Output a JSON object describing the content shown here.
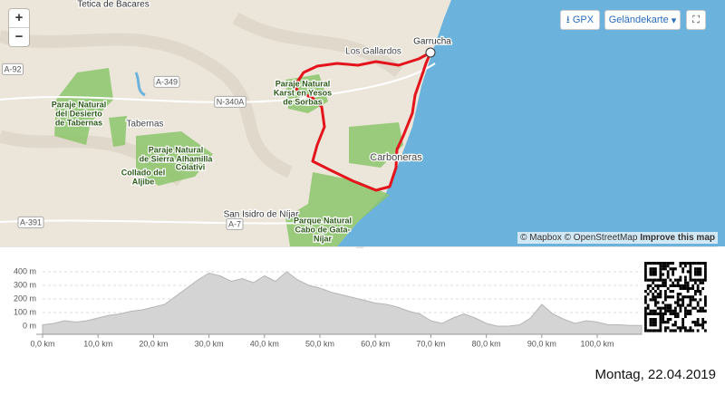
{
  "map": {
    "labels": [
      {
        "lines": [
          "Tetica de Bacares"
        ]
      },
      {
        "lines": [
          "Los Gallardos"
        ]
      },
      {
        "lines": [
          "Garrucha"
        ]
      },
      {
        "lines": [
          "A-92"
        ]
      },
      {
        "lines": [
          "A-349"
        ]
      },
      {
        "lines": [
          "N-340A"
        ]
      },
      {
        "lines": [
          "Tabernas"
        ]
      },
      {
        "lines": [
          "Paraje Natural",
          "del Desierto",
          "de Tabernas"
        ]
      },
      {
        "lines": [
          "Paraje Natural",
          "Karst en Yesos",
          "de Sorbas"
        ]
      },
      {
        "lines": [
          "Paraje Natural",
          "de Sierra Alhamilla"
        ]
      },
      {
        "lines": [
          "Colativi"
        ]
      },
      {
        "lines": [
          "Collado del",
          "Aljibe"
        ]
      },
      {
        "lines": [
          "Carboneras"
        ]
      },
      {
        "lines": [
          "San Isidro de Níjar"
        ]
      },
      {
        "lines": [
          "A-7"
        ]
      },
      {
        "lines": [
          "A-391"
        ]
      },
      {
        "lines": [
          "Parque Natural",
          "Cabo de Gata-",
          "Níjar"
        ]
      }
    ],
    "zoom_in": "+",
    "zoom_out": "−",
    "gpx_button": "GPX",
    "layer_button": "Geländekarte",
    "attribution": [
      "© Mapbox",
      "© OpenStreetMap",
      "Improve this map"
    ]
  },
  "elevation": {
    "x": [
      0,
      2,
      4,
      6,
      8,
      10,
      12,
      14,
      16,
      18,
      20,
      22,
      24,
      26,
      28,
      30,
      32,
      34,
      36,
      38,
      40,
      42,
      44,
      46,
      48,
      50,
      52,
      54,
      56,
      58,
      60,
      62,
      64,
      66,
      68,
      70,
      72,
      74,
      76,
      78,
      80,
      82,
      84,
      86,
      88,
      90,
      92,
      94,
      96,
      98,
      100,
      102,
      104,
      106,
      108
    ],
    "values": [
      10,
      20,
      40,
      30,
      40,
      60,
      80,
      90,
      110,
      120,
      140,
      160,
      220,
      280,
      340,
      390,
      370,
      330,
      350,
      320,
      370,
      330,
      400,
      340,
      300,
      280,
      250,
      230,
      210,
      190,
      170,
      160,
      140,
      110,
      90,
      40,
      20,
      60,
      90,
      60,
      20,
      0,
      0,
      10,
      60,
      160,
      90,
      50,
      20,
      40,
      30,
      10,
      10,
      5,
      5
    ],
    "xlim": [
      0,
      108
    ],
    "ylim": [
      -60,
      450
    ],
    "xticks": [
      {
        "value": 0,
        "label": "0,0 km"
      },
      {
        "value": 10,
        "label": "10,0 km"
      },
      {
        "value": 20,
        "label": "20,0 km"
      },
      {
        "value": 30,
        "label": "30,0 km"
      },
      {
        "value": 40,
        "label": "40,0 km"
      },
      {
        "value": 50,
        "label": "50,0 km"
      },
      {
        "value": 60,
        "label": "60,0 km"
      },
      {
        "value": 70,
        "label": "70,0 km"
      },
      {
        "value": 80,
        "label": "80,0 km"
      },
      {
        "value": 90,
        "label": "90,0 km"
      },
      {
        "value": 100,
        "label": "100,0 km"
      }
    ],
    "yticks": [
      {
        "value": 0,
        "label": "0 m"
      },
      {
        "value": 100,
        "label": "100 m"
      },
      {
        "value": 200,
        "label": "200 m"
      },
      {
        "value": 300,
        "label": "300 m"
      },
      {
        "value": 400,
        "label": "400 m"
      }
    ]
  },
  "date": "Montag, 22.04.2019"
}
